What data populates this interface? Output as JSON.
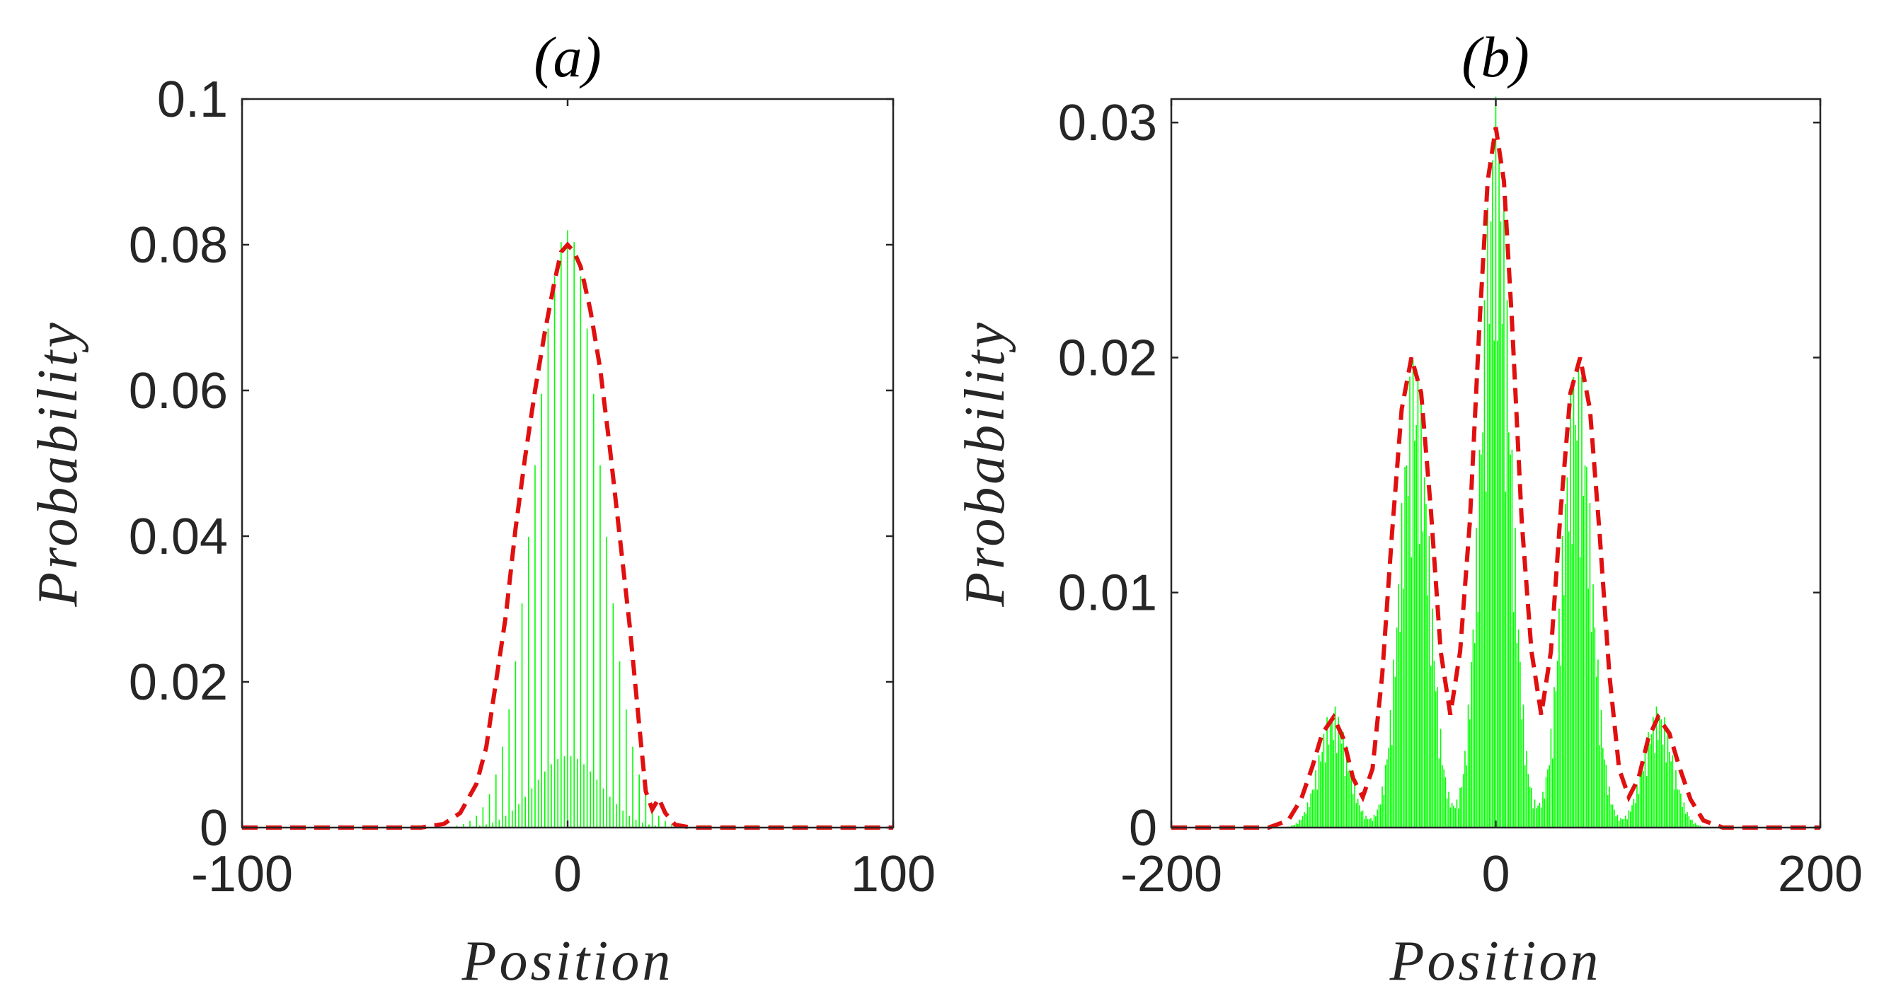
{
  "colors": {
    "stem": "#00ff00",
    "envelope": "#e01010",
    "axis": "#262626"
  },
  "chart_data": [
    {
      "type": "line",
      "title": "(a)",
      "xlabel": "Position",
      "ylabel": "Probability",
      "xlim": [
        -100,
        100
      ],
      "ylim": [
        0,
        0.1
      ],
      "xticks": [
        -100,
        0,
        100
      ],
      "xtick_labels": [
        "-100",
        "0",
        "100"
      ],
      "yticks": [
        0,
        0.02,
        0.04,
        0.06,
        0.08,
        0.1
      ],
      "ytick_labels": [
        "0",
        "0.02",
        "0.04",
        "0.06",
        "0.08",
        "0.1"
      ],
      "series": [
        {
          "name": "stems",
          "style": "green stems",
          "center": 0,
          "peak": 0.082,
          "sigma": 10,
          "support": [
            -40,
            40
          ],
          "step": 1
        },
        {
          "name": "envelope",
          "style": "red dashed",
          "points": [
            [
              -100,
              0
            ],
            [
              -45,
              0
            ],
            [
              -38,
              0.0005
            ],
            [
              -33,
              0.002
            ],
            [
              -28,
              0.006
            ],
            [
              -25,
              0.011
            ],
            [
              -22,
              0.02
            ],
            [
              -19,
              0.029
            ],
            [
              -16,
              0.041
            ],
            [
              -13,
              0.051
            ],
            [
              -10,
              0.06
            ],
            [
              -7,
              0.068
            ],
            [
              -4,
              0.075
            ],
            [
              -2,
              0.079
            ],
            [
              0,
              0.08
            ],
            [
              2,
              0.079
            ],
            [
              4,
              0.077
            ],
            [
              7,
              0.071
            ],
            [
              10,
              0.063
            ],
            [
              13,
              0.052
            ],
            [
              16,
              0.04
            ],
            [
              19,
              0.028
            ],
            [
              22,
              0.014
            ],
            [
              24,
              0.005
            ],
            [
              26,
              0.0025
            ],
            [
              28,
              0.004
            ],
            [
              30,
              0.002
            ],
            [
              33,
              0.0004
            ],
            [
              38,
              0
            ],
            [
              100,
              0
            ]
          ]
        }
      ]
    },
    {
      "type": "line",
      "title": "(b)",
      "xlabel": "Position",
      "ylabel": "Probability",
      "xlim": [
        -200,
        200
      ],
      "ylim": [
        0,
        0.031
      ],
      "xticks": [
        -200,
        0,
        200
      ],
      "xtick_labels": [
        "-200",
        "0",
        "200"
      ],
      "yticks": [
        0,
        0.01,
        0.02,
        0.03
      ],
      "ytick_labels": [
        "0",
        "0.01",
        "0.02",
        "0.03"
      ],
      "series": [
        {
          "name": "stems",
          "style": "green stems",
          "step": 1,
          "support": [
            -135,
            135
          ],
          "peaks": [
            [
              -100,
              0.0052,
              9
            ],
            [
              -50,
              0.0205,
              9
            ],
            [
              0,
              0.0311,
              9
            ],
            [
              50,
              0.0205,
              9
            ],
            [
              100,
              0.0052,
              9
            ]
          ]
        },
        {
          "name": "envelope",
          "style": "red dashed",
          "points": [
            [
              -200,
              0
            ],
            [
              -140,
              0
            ],
            [
              -128,
              0.0003
            ],
            [
              -120,
              0.0012
            ],
            [
              -113,
              0.0026
            ],
            [
              -107,
              0.004
            ],
            [
              -100,
              0.0047
            ],
            [
              -94,
              0.0038
            ],
            [
              -88,
              0.0021
            ],
            [
              -82,
              0.0013
            ],
            [
              -76,
              0.0025
            ],
            [
              -70,
              0.0065
            ],
            [
              -64,
              0.0125
            ],
            [
              -58,
              0.0178
            ],
            [
              -52,
              0.02
            ],
            [
              -46,
              0.0185
            ],
            [
              -40,
              0.0135
            ],
            [
              -34,
              0.0075
            ],
            [
              -28,
              0.0048
            ],
            [
              -22,
              0.0075
            ],
            [
              -16,
              0.013
            ],
            [
              -10,
              0.0215
            ],
            [
              -5,
              0.0275
            ],
            [
              0,
              0.0298
            ],
            [
              5,
              0.0275
            ],
            [
              10,
              0.0215
            ],
            [
              16,
              0.013
            ],
            [
              22,
              0.0075
            ],
            [
              28,
              0.0048
            ],
            [
              34,
              0.0075
            ],
            [
              40,
              0.0135
            ],
            [
              46,
              0.0185
            ],
            [
              52,
              0.02
            ],
            [
              58,
              0.0178
            ],
            [
              64,
              0.0125
            ],
            [
              70,
              0.0065
            ],
            [
              76,
              0.0025
            ],
            [
              82,
              0.0013
            ],
            [
              88,
              0.0021
            ],
            [
              94,
              0.0038
            ],
            [
              100,
              0.0047
            ],
            [
              107,
              0.004
            ],
            [
              113,
              0.0026
            ],
            [
              120,
              0.0012
            ],
            [
              128,
              0.0003
            ],
            [
              140,
              0
            ],
            [
              200,
              0
            ]
          ]
        }
      ]
    }
  ]
}
